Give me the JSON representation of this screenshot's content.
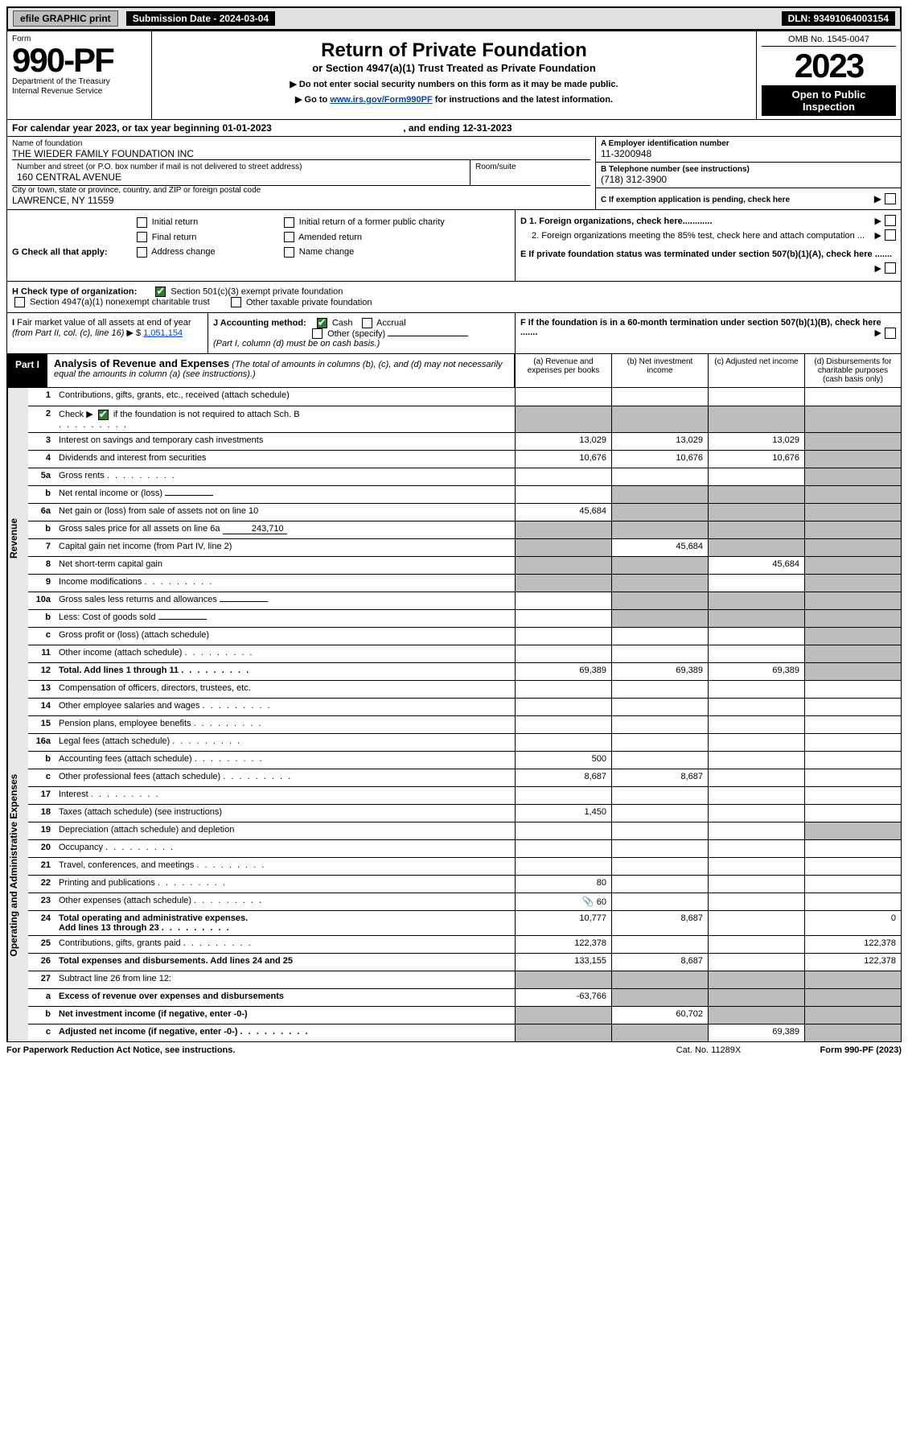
{
  "topbar": {
    "efile_label": "efile GRAPHIC print",
    "submission_label": "Submission Date - 2024-03-04",
    "dln_label": "DLN: 93491064003154"
  },
  "header": {
    "form_word": "Form",
    "form_number": "990-PF",
    "dept1": "Department of the Treasury",
    "dept2": "Internal Revenue Service",
    "title": "Return of Private Foundation",
    "subtitle": "or Section 4947(a)(1) Trust Treated as Private Foundation",
    "note1": "Do not enter social security numbers on this form as it may be made public.",
    "note2_pre": "Go to ",
    "note2_link": "www.irs.gov/Form990PF",
    "note2_post": " for instructions and the latest information.",
    "omb": "OMB No. 1545-0047",
    "year": "2023",
    "open_public": "Open to Public Inspection"
  },
  "calyear": {
    "text_pre": "For calendar year 2023, or tax year beginning ",
    "begin": "01-01-2023",
    "mid": " , and ending ",
    "end": "12-31-2023"
  },
  "identity": {
    "name_label": "Name of foundation",
    "name": "THE WIEDER FAMILY FOUNDATION INC",
    "addr_label": "Number and street (or P.O. box number if mail is not delivered to street address)",
    "addr": "160 CENTRAL AVENUE",
    "room_label": "Room/suite",
    "city_label": "City or town, state or province, country, and ZIP or foreign postal code",
    "city": "LAWRENCE, NY  11559",
    "a_label": "A Employer identification number",
    "a_val": "11-3200948",
    "b_label": "B Telephone number (see instructions)",
    "b_val": "(718) 312-3900",
    "c_label": "C If exemption application is pending, check here"
  },
  "g": {
    "label": "G Check all that apply:",
    "opts": [
      "Initial return",
      "Final return",
      "Address change",
      "Initial return of a former public charity",
      "Amended return",
      "Name change"
    ],
    "d1": "D 1. Foreign organizations, check here............",
    "d2": "2. Foreign organizations meeting the 85% test, check here and attach computation ...",
    "e": "E  If private foundation status was terminated under section 507(b)(1)(A), check here ......."
  },
  "h": {
    "label": "H Check type of organization:",
    "opt1": "Section 501(c)(3) exempt private foundation",
    "opt2": "Section 4947(a)(1) nonexempt charitable trust",
    "opt3": "Other taxable private foundation"
  },
  "i": {
    "label": "I Fair market value of all assets at end of year (from Part II, col. (c), line 16) ▶ $",
    "val": "1,051,154"
  },
  "j": {
    "label": "J Accounting method:",
    "cash": "Cash",
    "accrual": "Accrual",
    "other": "Other (specify)",
    "note": "(Part I, column (d) must be on cash basis.)"
  },
  "f": {
    "label": "F  If the foundation is in a 60-month termination under section 507(b)(1)(B), check here ......."
  },
  "part1": {
    "tab": "Part I",
    "title": "Analysis of Revenue and Expenses",
    "note": "(The total of amounts in columns (b), (c), and (d) may not necessarily equal the amounts in column (a) (see instructions).)",
    "col_a": "(a)   Revenue and expenses per books",
    "col_b": "(b)   Net investment income",
    "col_c": "(c)   Adjusted net income",
    "col_d": "(d)   Disbursements for charitable purposes (cash basis only)"
  },
  "side": {
    "revenue": "Revenue",
    "expenses": "Operating and Administrative Expenses"
  },
  "lines": {
    "1": {
      "n": "1",
      "d": "Contributions, gifts, grants, etc., received (attach schedule)"
    },
    "2": {
      "n": "2",
      "d": "Check ▶",
      "d2": " if the foundation is not required to attach Sch. B"
    },
    "3": {
      "n": "3",
      "d": "Interest on savings and temporary cash investments",
      "a": "13,029",
      "b": "13,029",
      "c": "13,029"
    },
    "4": {
      "n": "4",
      "d": "Dividends and interest from securities",
      "a": "10,676",
      "b": "10,676",
      "c": "10,676"
    },
    "5a": {
      "n": "5a",
      "d": "Gross rents"
    },
    "5b": {
      "n": "b",
      "d": "Net rental income or (loss)"
    },
    "6a": {
      "n": "6a",
      "d": "Net gain or (loss) from sale of assets not on line 10",
      "a": "45,684"
    },
    "6b": {
      "n": "b",
      "d": "Gross sales price for all assets on line 6a",
      "blank": "243,710"
    },
    "7": {
      "n": "7",
      "d": "Capital gain net income (from Part IV, line 2)",
      "b": "45,684"
    },
    "8": {
      "n": "8",
      "d": "Net short-term capital gain",
      "c": "45,684"
    },
    "9": {
      "n": "9",
      "d": "Income modifications"
    },
    "10a": {
      "n": "10a",
      "d": "Gross sales less returns and allowances"
    },
    "10b": {
      "n": "b",
      "d": "Less: Cost of goods sold"
    },
    "10c": {
      "n": "c",
      "d": "Gross profit or (loss) (attach schedule)"
    },
    "11": {
      "n": "11",
      "d": "Other income (attach schedule)"
    },
    "12": {
      "n": "12",
      "d": "Total. Add lines 1 through 11",
      "a": "69,389",
      "b": "69,389",
      "c": "69,389"
    },
    "13": {
      "n": "13",
      "d": "Compensation of officers, directors, trustees, etc."
    },
    "14": {
      "n": "14",
      "d": "Other employee salaries and wages"
    },
    "15": {
      "n": "15",
      "d": "Pension plans, employee benefits"
    },
    "16a": {
      "n": "16a",
      "d": "Legal fees (attach schedule)"
    },
    "16b": {
      "n": "b",
      "d": "Accounting fees (attach schedule)",
      "a": "500"
    },
    "16c": {
      "n": "c",
      "d": "Other professional fees (attach schedule)",
      "a": "8,687",
      "b": "8,687"
    },
    "17": {
      "n": "17",
      "d": "Interest"
    },
    "18": {
      "n": "18",
      "d": "Taxes (attach schedule) (see instructions)",
      "a": "1,450"
    },
    "19": {
      "n": "19",
      "d": "Depreciation (attach schedule) and depletion"
    },
    "20": {
      "n": "20",
      "d": "Occupancy"
    },
    "21": {
      "n": "21",
      "d": "Travel, conferences, and meetings"
    },
    "22": {
      "n": "22",
      "d": "Printing and publications",
      "a": "80"
    },
    "23": {
      "n": "23",
      "d": "Other expenses (attach schedule)",
      "a": "60",
      "icon": "📎"
    },
    "24": {
      "n": "24",
      "d": "Total operating and administrative expenses. Add lines 13 through 23",
      "a": "10,777",
      "b": "8,687",
      "dd": "0"
    },
    "25": {
      "n": "25",
      "d": "Contributions, gifts, grants paid",
      "a": "122,378",
      "dd": "122,378"
    },
    "26": {
      "n": "26",
      "d": "Total expenses and disbursements. Add lines 24 and 25",
      "a": "133,155",
      "b": "8,687",
      "dd": "122,378"
    },
    "27": {
      "n": "27",
      "d": "Subtract line 26 from line 12:"
    },
    "27a": {
      "n": "a",
      "d": "Excess of revenue over expenses and disbursements",
      "a": "-63,766"
    },
    "27b": {
      "n": "b",
      "d": "Net investment income (if negative, enter -0-)",
      "b": "60,702"
    },
    "27c": {
      "n": "c",
      "d": "Adjusted net income (if negative, enter -0-)",
      "c": "69,389"
    }
  },
  "footer": {
    "left": "For Paperwork Reduction Act Notice, see instructions.",
    "mid": "Cat. No. 11289X",
    "right": "Form 990-PF (2023)"
  }
}
